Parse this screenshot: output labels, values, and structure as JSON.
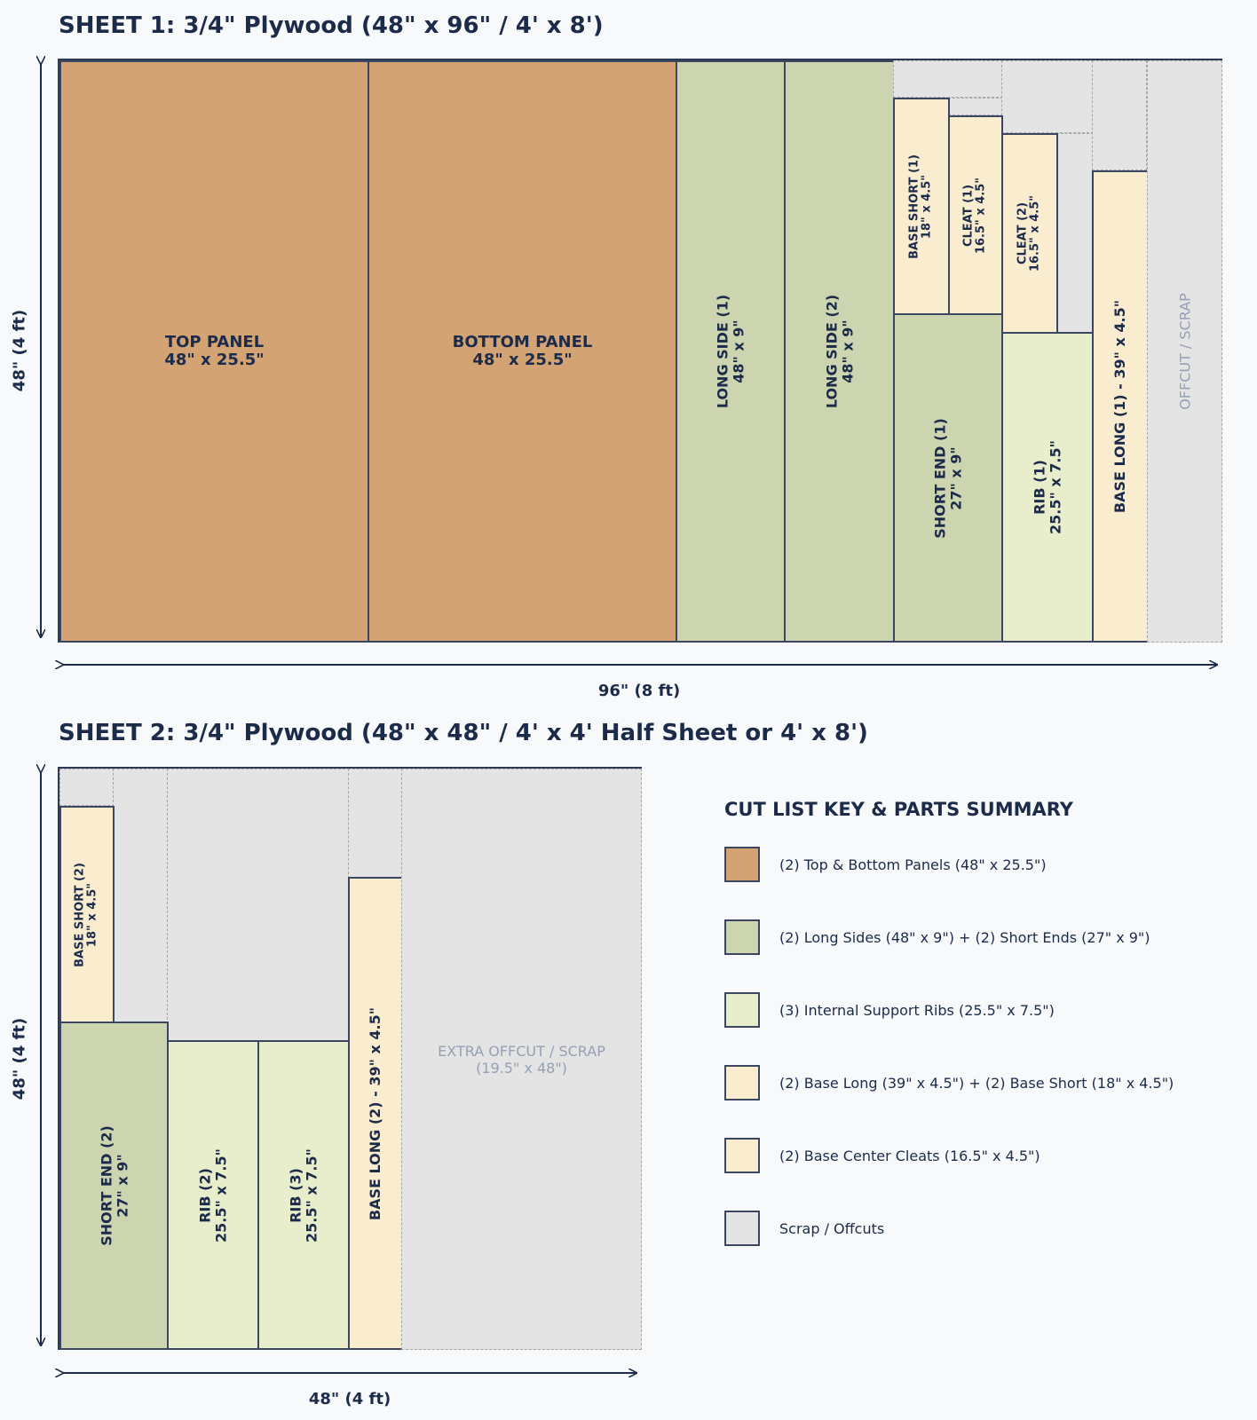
{
  "sheet1": {
    "title": "SHEET 1: 3/4\" Plywood (48\" x 96\" / 4' x 8')",
    "width_label": "96\" (8 ft)",
    "height_label": "48\" (4 ft)",
    "pieces": {
      "top_panel": {
        "name": "TOP PANEL",
        "size": "48\" x 25.5\""
      },
      "bottom_panel": {
        "name": "BOTTOM PANEL",
        "size": "48\" x 25.5\""
      },
      "long_side_1": {
        "name": "LONG SIDE (1)",
        "size": "48\" x 9\""
      },
      "long_side_2": {
        "name": "LONG SIDE (2)",
        "size": "48\" x 9\""
      },
      "base_short_1": {
        "name": "BASE SHORT (1)",
        "size": "18\" x 4.5\""
      },
      "cleat_1": {
        "name": "CLEAT (1)",
        "size": "16.5\" x 4.5\""
      },
      "cleat_2": {
        "name": "CLEAT (2)",
        "size": "16.5\" x 4.5\""
      },
      "short_end_1": {
        "name": "SHORT END (1)",
        "size": "27\" x 9\""
      },
      "rib_1": {
        "name": "RIB (1)",
        "size": "25.5\" x 7.5\""
      },
      "base_long_1": {
        "name": "BASE LONG (1) - 39\" x 4.5\""
      },
      "scrap": {
        "name": "OFFCUT / SCRAP"
      }
    }
  },
  "sheet2": {
    "title": "SHEET 2: 3/4\" Plywood (48\" x 48\" / 4' x 4' Half Sheet or 4' x 8')",
    "width_label": "48\" (4 ft)",
    "height_label": "48\" (4 ft)",
    "pieces": {
      "base_short_2": {
        "name": "BASE SHORT (2)",
        "size": "18\" x 4.5\""
      },
      "short_end_2": {
        "name": "SHORT END (2)",
        "size": "27\" x 9\""
      },
      "rib_2": {
        "name": "RIB (2)",
        "size": "25.5\" x 7.5\""
      },
      "rib_3": {
        "name": "RIB (3)",
        "size": "25.5\" x 7.5\""
      },
      "base_long_2": {
        "name": "BASE LONG (2) - 39\" x 4.5\""
      },
      "scrap": {
        "name": "EXTRA OFFCUT / SCRAP",
        "size": "(19.5\" x 48\")"
      }
    }
  },
  "key": {
    "title": "CUT LIST KEY & PARTS SUMMARY",
    "items": [
      {
        "label": "(2) Top & Bottom Panels (48\" x 25.5\")",
        "color": "#d4a373"
      },
      {
        "label": "(2) Long Sides (48\" x 9\") + (2) Short Ends (27\" x 9\")",
        "color": "#cdd5b0"
      },
      {
        "label": "(3) Internal Support Ribs (25.5\" x 7.5\")",
        "color": "#e8edcb"
      },
      {
        "label": "(2) Base Long (39\" x 4.5\") + (2) Base Short (18\" x 4.5\")",
        "color": "#faecce"
      },
      {
        "label": "(2) Base Center Cleats (16.5\" x 4.5\")",
        "color": "#faecce"
      },
      {
        "label": "Scrap / Offcuts",
        "color": "#e4e4e4"
      }
    ]
  }
}
